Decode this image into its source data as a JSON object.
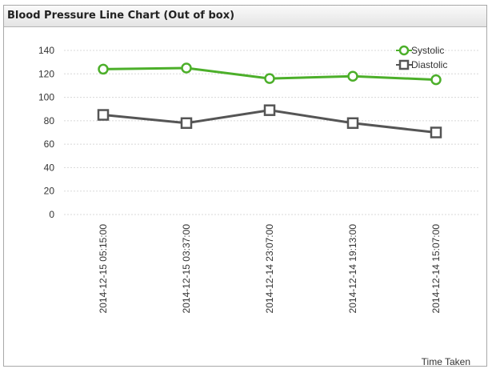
{
  "chart_data": {
    "type": "line",
    "title": "Blood Pressure Line Chart (Out of box)",
    "x_label": "Time Taken",
    "categories": [
      "2014-12-15 05:15:00",
      "2014-12-15 03:37:00",
      "2014-12-14 23:07:00",
      "2014-12-14 19:13:00",
      "2014-12-14 15:07:00"
    ],
    "series": [
      {
        "name": "Systolic",
        "color": "#4caf2a",
        "marker": "circle",
        "values": [
          124,
          125,
          116,
          118,
          115
        ]
      },
      {
        "name": "Diastolic",
        "color": "#555555",
        "marker": "square",
        "values": [
          85,
          78,
          89,
          78,
          70
        ]
      }
    ],
    "ylim": [
      0,
      140
    ],
    "yticks": [
      0,
      20,
      40,
      60,
      80,
      100,
      120,
      140
    ],
    "grid": true,
    "legend": "top-right"
  }
}
